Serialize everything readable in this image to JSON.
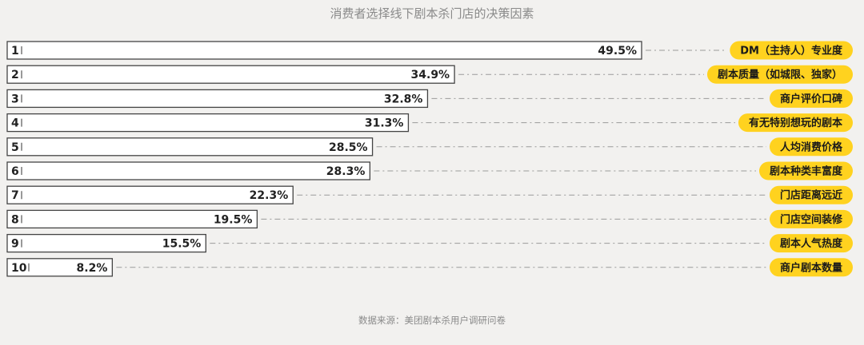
{
  "chart_data": {
    "type": "bar",
    "orientation": "horizontal",
    "title": "消费者选择线下剧本杀门店的决策因素",
    "source": "数据来源：美团剧本杀用户调研问卷",
    "value_unit": "%",
    "xlim": [
      0,
      50
    ],
    "bars": [
      {
        "rank": "1",
        "value": 49.5,
        "label": "49.5%",
        "category": "DM（主持人）专业度"
      },
      {
        "rank": "2",
        "value": 34.9,
        "label": "34.9%",
        "category": "剧本质量（如城限、独家）"
      },
      {
        "rank": "3",
        "value": 32.8,
        "label": "32.8%",
        "category": "商户评价口碑"
      },
      {
        "rank": "4",
        "value": 31.3,
        "label": "31.3%",
        "category": "有无特别想玩的剧本"
      },
      {
        "rank": "5",
        "value": 28.5,
        "label": "28.5%",
        "category": "人均消费价格"
      },
      {
        "rank": "6",
        "value": 28.3,
        "label": "28.3%",
        "category": "剧本种类丰富度"
      },
      {
        "rank": "7",
        "value": 22.3,
        "label": "22.3%",
        "category": "门店距离远近"
      },
      {
        "rank": "8",
        "value": 19.5,
        "label": "19.5%",
        "category": "门店空间装修"
      },
      {
        "rank": "9",
        "value": 15.5,
        "label": "15.5%",
        "category": "剧本人气热度"
      },
      {
        "rank": "10",
        "value": 8.2,
        "label": "8.2%",
        "category": "商户剧本数量"
      }
    ],
    "colors": {
      "bar_fill": "#ffffff",
      "bar_stroke": "#444444",
      "pill": "#ffd21f",
      "leader": "#9a9a9a"
    },
    "grid": false,
    "legend": "none"
  }
}
